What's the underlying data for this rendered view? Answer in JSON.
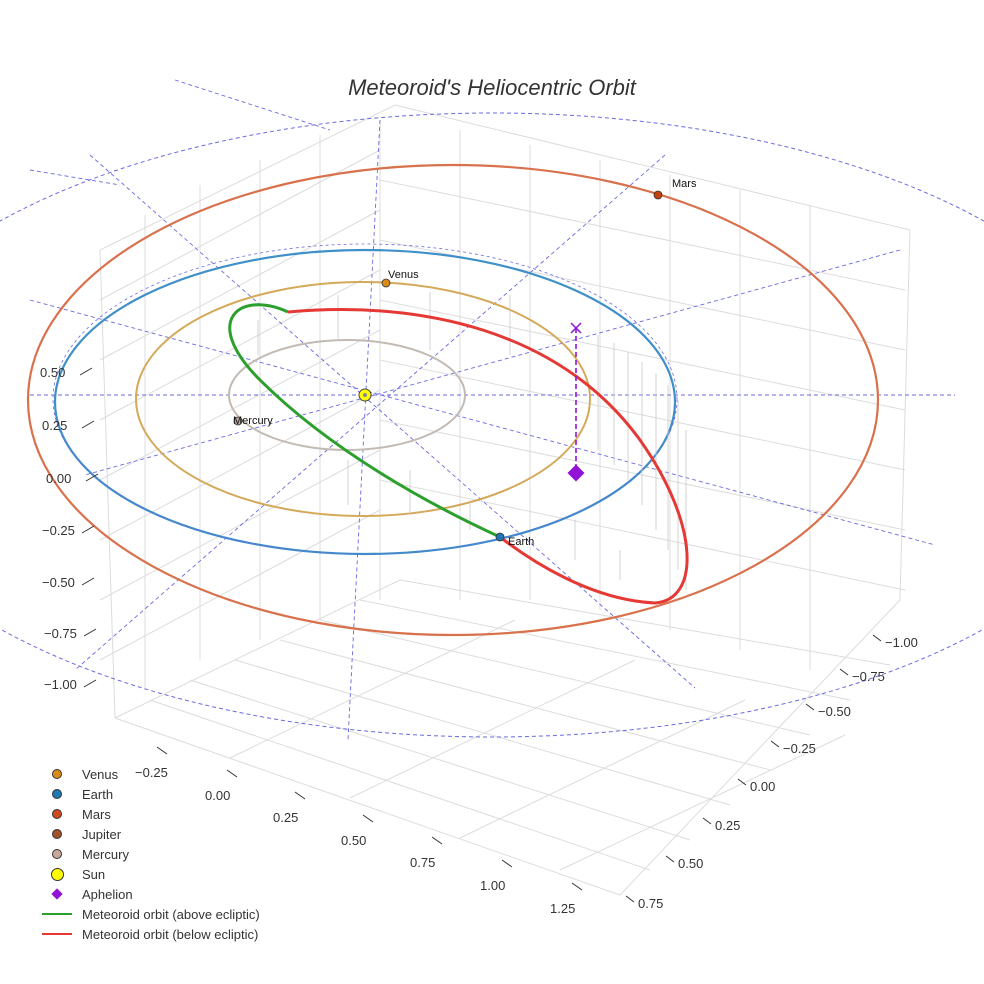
{
  "chart_data": {
    "type": "scatter3d",
    "title": "Meteoroid's Heliocentric Orbit",
    "axes": {
      "x_ticks": [
        "−1.00",
        "−0.75",
        "−0.50",
        "−0.25",
        "0.00",
        "0.25",
        "0.50",
        "0.75"
      ],
      "y_ticks": [
        "−0.25",
        "0.00",
        "0.25",
        "0.50",
        "0.75",
        "1.00",
        "1.25"
      ],
      "z_ticks": [
        "0.50",
        "0.25",
        "0.00",
        "−0.25",
        "−0.50",
        "−0.75",
        "−1.00"
      ]
    },
    "planets": [
      {
        "name": "Mercury",
        "color": "#b9a89f",
        "orbit_color": "#c2bab3",
        "label": "Mercury"
      },
      {
        "name": "Venus",
        "color": "#d98b1a",
        "orbit_color": "#d4a95a",
        "label": "Venus"
      },
      {
        "name": "Earth",
        "color": "#1f77b4",
        "orbit_color": "#3f90c8",
        "label": "Earth"
      },
      {
        "name": "Mars",
        "color": "#c1440e",
        "orbit_color": "#d8714c",
        "label": "Mars"
      },
      {
        "name": "Jupiter",
        "color": "#a0522d",
        "orbit_color": "#6a6ae0"
      }
    ],
    "meteoroid": {
      "above_color": "#2ca02c",
      "below_color": "#e53935",
      "aphelion_color": "#9013d6"
    },
    "legend": [
      {
        "label": "Venus",
        "kind": "dot",
        "color": "#d98b1a"
      },
      {
        "label": "Earth",
        "kind": "dot",
        "color": "#1f77b4"
      },
      {
        "label": "Mars",
        "kind": "dot",
        "color": "#d04a20"
      },
      {
        "label": "Jupiter",
        "kind": "dot",
        "color": "#a0522d"
      },
      {
        "label": "Mercury",
        "kind": "dot",
        "color": "#c9a79b"
      },
      {
        "label": "Sun",
        "kind": "bigdot",
        "color": "#ffff00"
      },
      {
        "label": "Aphelion",
        "kind": "diamond",
        "color": "#9013d6"
      },
      {
        "label": "Meteoroid orbit (above ecliptic)",
        "kind": "line",
        "color": "#2ca02c"
      },
      {
        "label": "Meteoroid orbit (below ecliptic)",
        "kind": "line",
        "color": "#e53935"
      }
    ]
  }
}
